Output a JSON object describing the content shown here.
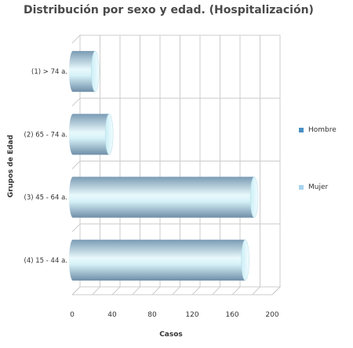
{
  "chart_data": {
    "type": "bar",
    "orientation": "horizontal",
    "title": "Distribución por sexo y edad. (Hospitalización)",
    "xlabel": "Casos",
    "ylabel": "Grupos de Edad",
    "categories": [
      "(1) > 74 a.",
      "(2) 65 - 74 a.",
      "(3) 45 - 64 a.",
      "(4) 15 - 44 a."
    ],
    "series": [
      {
        "name": "Hombre",
        "values": [
          23,
          37,
          182,
          173
        ]
      },
      {
        "name": "Mujer",
        "values": [
          0,
          0,
          0,
          0
        ]
      }
    ],
    "xlim": [
      0,
      200
    ],
    "xticks": [
      0,
      40,
      80,
      120,
      160,
      200
    ],
    "grid": true,
    "legend": "right",
    "colors": {
      "Hombre": "#4a8fc4",
      "Mujer": "#a9d3ef",
      "bar_mid": "#e8f9fc",
      "bar_edge": "#7c9cb4"
    }
  }
}
